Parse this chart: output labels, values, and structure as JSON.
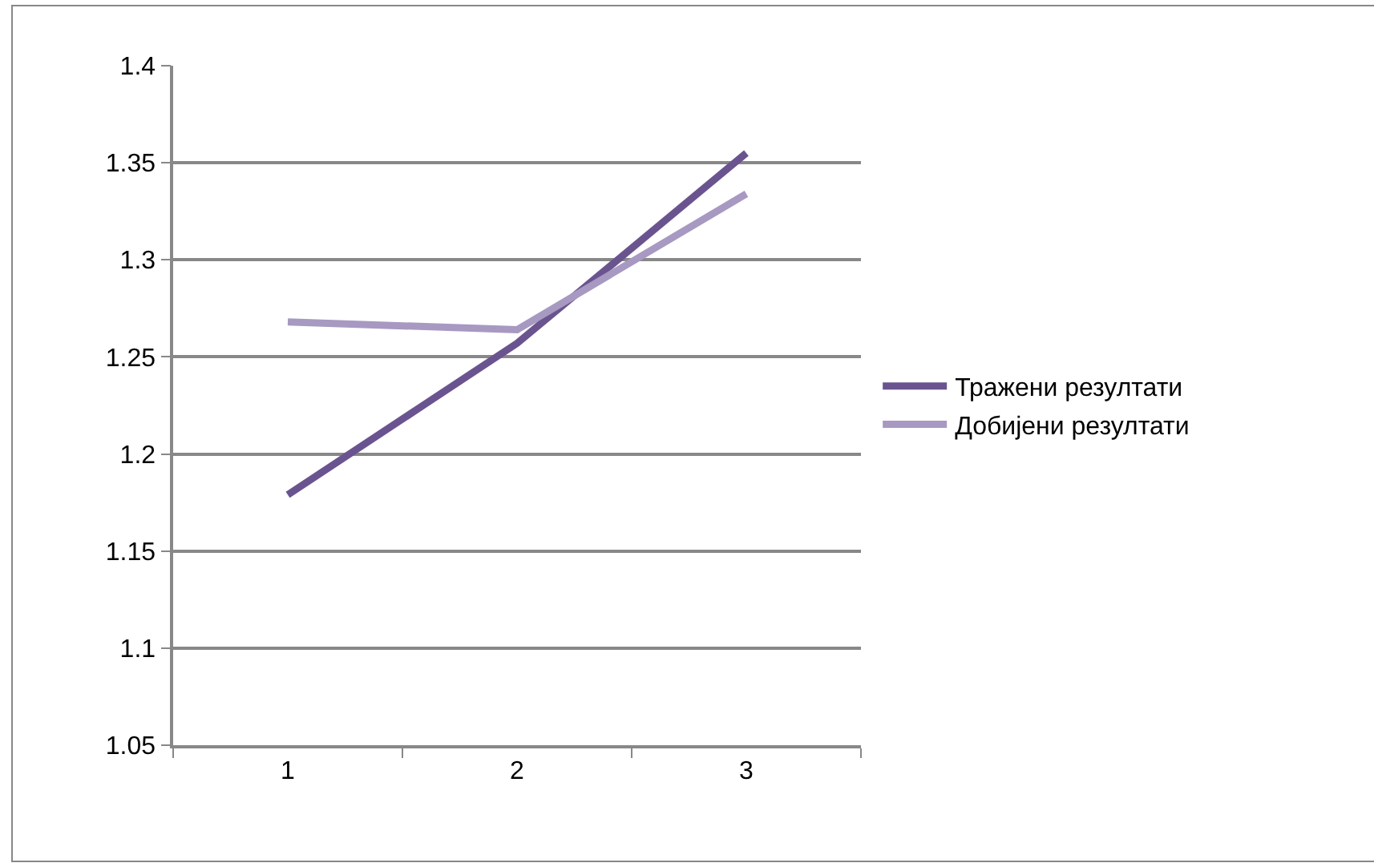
{
  "chart_data": {
    "type": "line",
    "categories": [
      "1",
      "2",
      "3"
    ],
    "series": [
      {
        "name": "Тражени резултати",
        "color": "#6a548f",
        "values": [
          1.179,
          1.257,
          1.355
        ]
      },
      {
        "name": "Добијени резултати",
        "color": "#a799c1",
        "values": [
          1.268,
          1.264,
          1.334
        ]
      }
    ],
    "ylim": [
      1.05,
      1.4
    ],
    "yticks": [
      1.05,
      1.1,
      1.15,
      1.2,
      1.25,
      1.3,
      1.35,
      1.4
    ],
    "grid": "y",
    "legend": "right",
    "marker": "none",
    "line_style": "solid"
  }
}
